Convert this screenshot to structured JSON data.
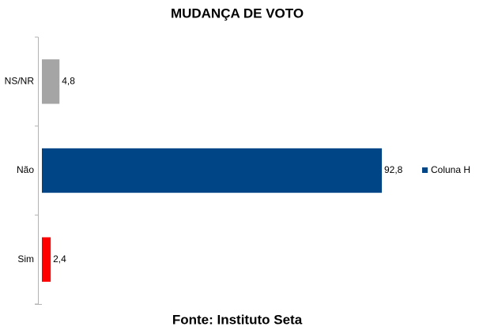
{
  "chart_data": {
    "type": "hbar",
    "title": "MUDANÇA DE VOTO",
    "source": "Fonte: Instituto Seta",
    "categories": [
      "NS/NR",
      "Não",
      "Sim"
    ],
    "series": [
      {
        "name": "Coluna H",
        "color": "#004586",
        "colors": [
          "#a5a5a5",
          "#004586",
          "#ff0000"
        ],
        "values": [
          4.8,
          92.8,
          2.4
        ],
        "value_labels": [
          "4,8",
          "92,8",
          "2,4"
        ]
      }
    ],
    "legend": "right"
  }
}
